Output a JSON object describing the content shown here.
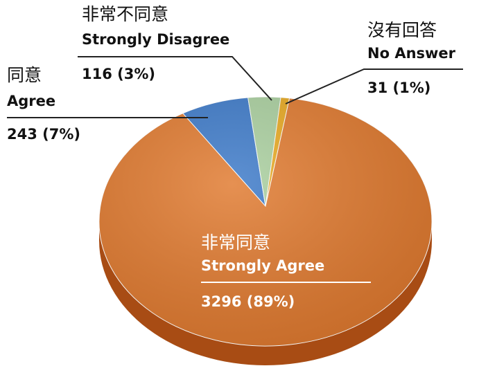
{
  "chart_data": {
    "type": "pie",
    "categories": [
      "Agree",
      "Strongly Disagree",
      "No Answer",
      "Strongly Agree"
    ],
    "categories_zh": [
      "同意",
      "非常不同意",
      "沒有回答",
      "非常同意"
    ],
    "values": [
      243,
      116,
      31,
      3296
    ],
    "value_labels": [
      "243 (7%)",
      "116 (3%)",
      "31 (1%)",
      "3296 (89%)"
    ],
    "colors": [
      "#3a78c8",
      "#a9cf9e",
      "#e8a81e",
      "#e0782c"
    ]
  }
}
